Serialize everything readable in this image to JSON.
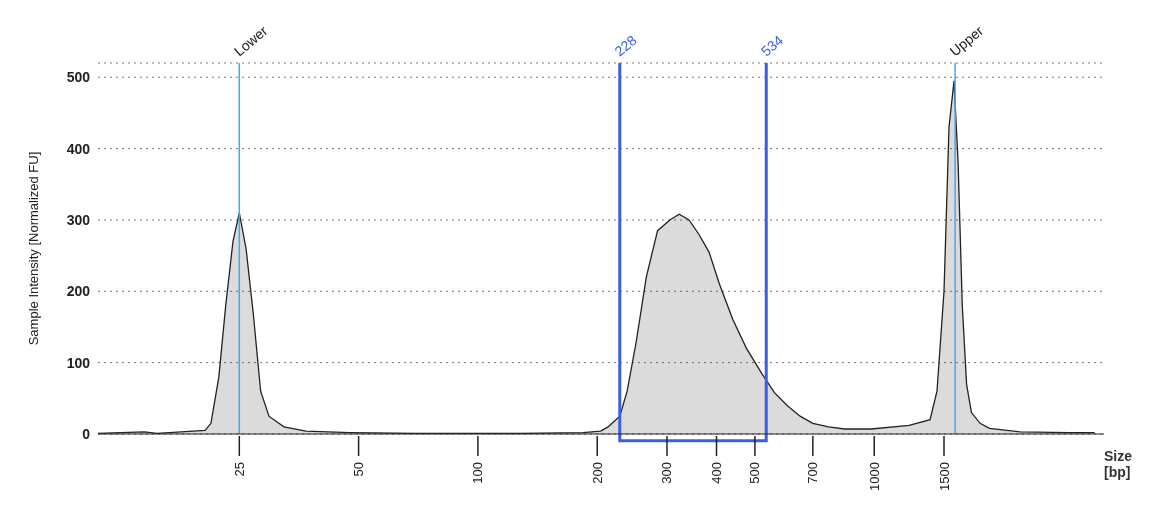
{
  "chart_data": {
    "type": "area",
    "xlabel": "Size [bp]",
    "ylabel": "Sample Intensity [Normalized FU]",
    "log": "x",
    "xlim": [
      11,
      3800
    ],
    "xticks": [
      25,
      50,
      100,
      200,
      300,
      400,
      500,
      700,
      1000,
      1500
    ],
    "ylim": [
      0,
      520
    ],
    "yticks": [
      0,
      100,
      200,
      300,
      400,
      500
    ],
    "grid": "y",
    "series": [
      {
        "color": "#222222",
        "x": [
          11,
          14.4,
          15.5,
          20.5,
          21.2,
          22.2,
          23.1,
          24.1,
          25,
          26,
          27.1,
          28.3,
          29.7,
          32.4,
          36.8,
          47.5,
          69.7,
          128,
          184,
          204,
          213,
          228,
          238,
          251,
          266,
          284,
          305,
          322,
          341,
          361,
          383,
          407,
          440,
          476,
          520,
          560,
          603,
          650,
          700,
          767,
          842,
          983,
          1225,
          1383,
          1440,
          1500,
          1544,
          1590,
          1628,
          1668,
          1710,
          1759,
          1850,
          1954,
          2331,
          3100,
          3600
        ],
        "values": [
          1,
          3,
          1,
          5,
          15,
          80,
          180,
          270,
          310,
          260,
          170,
          60,
          25,
          10,
          4,
          2,
          1,
          1,
          2,
          4,
          10,
          25,
          60,
          130,
          220,
          285,
          300,
          308,
          300,
          280,
          255,
          210,
          160,
          120,
          85,
          58,
          40,
          25,
          15,
          10,
          7,
          7,
          12,
          20,
          60,
          200,
          430,
          495,
          380,
          180,
          70,
          30,
          15,
          8,
          3,
          2,
          2
        ]
      }
    ],
    "ref_lines": [
      {
        "axis": "x",
        "value": 25,
        "label": "Lower",
        "color": "#3fa9f5"
      },
      {
        "axis": "x",
        "value": 228,
        "label": "228",
        "color": "#3a5fe0"
      },
      {
        "axis": "x",
        "value": 534,
        "label": "534",
        "color": "#3a5fe0"
      },
      {
        "axis": "x",
        "value": 1600,
        "label": "Upper",
        "color": "#3fa9f5"
      }
    ]
  }
}
